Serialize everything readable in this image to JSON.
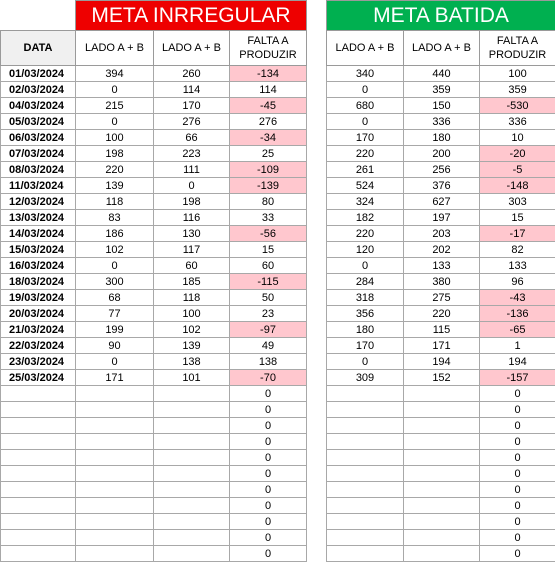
{
  "colors": {
    "irregular_header": "#ee0000",
    "batida_header": "#00b050",
    "negative_fill": "#ffc7ce",
    "negative_text": "#9c0006"
  },
  "left": {
    "title": "META INRREGULAR",
    "headers": {
      "date": "DATA",
      "col1": "LADO A + B",
      "col2": "LADO A + B",
      "col3": "FALTA A PRODUZIR"
    },
    "rows": [
      {
        "date": "01/03/2024",
        "a": "394",
        "b": "260",
        "falta": "-134",
        "neg": true
      },
      {
        "date": "02/03/2024",
        "a": "0",
        "b": "114",
        "falta": "114",
        "neg": false
      },
      {
        "date": "04/03/2024",
        "a": "215",
        "b": "170",
        "falta": "-45",
        "neg": true
      },
      {
        "date": "05/03/2024",
        "a": "0",
        "b": "276",
        "falta": "276",
        "neg": false
      },
      {
        "date": "06/03/2024",
        "a": "100",
        "b": "66",
        "falta": "-34",
        "neg": true
      },
      {
        "date": "07/03/2024",
        "a": "198",
        "b": "223",
        "falta": "25",
        "neg": false
      },
      {
        "date": "08/03/2024",
        "a": "220",
        "b": "111",
        "falta": "-109",
        "neg": true
      },
      {
        "date": "11/03/2024",
        "a": "139",
        "b": "0",
        "falta": "-139",
        "neg": true
      },
      {
        "date": "12/03/2024",
        "a": "118",
        "b": "198",
        "falta": "80",
        "neg": false
      },
      {
        "date": "13/03/2024",
        "a": "83",
        "b": "116",
        "falta": "33",
        "neg": false
      },
      {
        "date": "14/03/2024",
        "a": "186",
        "b": "130",
        "falta": "-56",
        "neg": true
      },
      {
        "date": "15/03/2024",
        "a": "102",
        "b": "117",
        "falta": "15",
        "neg": false
      },
      {
        "date": "16/03/2024",
        "a": "0",
        "b": "60",
        "falta": "60",
        "neg": false
      },
      {
        "date": "18/03/2024",
        "a": "300",
        "b": "185",
        "falta": "-115",
        "neg": true
      },
      {
        "date": "19/03/2024",
        "a": "68",
        "b": "118",
        "falta": "50",
        "neg": false
      },
      {
        "date": "20/03/2024",
        "a": "77",
        "b": "100",
        "falta": "23",
        "neg": false
      },
      {
        "date": "21/03/2024",
        "a": "199",
        "b": "102",
        "falta": "-97",
        "neg": true
      },
      {
        "date": "22/03/2024",
        "a": "90",
        "b": "139",
        "falta": "49",
        "neg": false
      },
      {
        "date": "23/03/2024",
        "a": "0",
        "b": "138",
        "falta": "138",
        "neg": false
      },
      {
        "date": "25/03/2024",
        "a": "171",
        "b": "101",
        "falta": "-70",
        "neg": true
      },
      {
        "date": "",
        "a": "",
        "b": "",
        "falta": "0",
        "neg": false
      },
      {
        "date": "",
        "a": "",
        "b": "",
        "falta": "0",
        "neg": false
      },
      {
        "date": "",
        "a": "",
        "b": "",
        "falta": "0",
        "neg": false
      },
      {
        "date": "",
        "a": "",
        "b": "",
        "falta": "0",
        "neg": false
      },
      {
        "date": "",
        "a": "",
        "b": "",
        "falta": "0",
        "neg": false
      },
      {
        "date": "",
        "a": "",
        "b": "",
        "falta": "0",
        "neg": false
      },
      {
        "date": "",
        "a": "",
        "b": "",
        "falta": "0",
        "neg": false
      },
      {
        "date": "",
        "a": "",
        "b": "",
        "falta": "0",
        "neg": false
      },
      {
        "date": "",
        "a": "",
        "b": "",
        "falta": "0",
        "neg": false
      },
      {
        "date": "",
        "a": "",
        "b": "",
        "falta": "0",
        "neg": false
      },
      {
        "date": "",
        "a": "",
        "b": "",
        "falta": "0",
        "neg": false
      }
    ]
  },
  "right": {
    "title": "META BATIDA",
    "headers": {
      "col1": "LADO A + B",
      "col2": "LADO A + B",
      "col3": "FALTA A PRODUZIR"
    },
    "rows": [
      {
        "a": "340",
        "b": "440",
        "falta": "100",
        "neg": false
      },
      {
        "a": "0",
        "b": "359",
        "falta": "359",
        "neg": false
      },
      {
        "a": "680",
        "b": "150",
        "falta": "-530",
        "neg": true
      },
      {
        "a": "0",
        "b": "336",
        "falta": "336",
        "neg": false
      },
      {
        "a": "170",
        "b": "180",
        "falta": "10",
        "neg": false
      },
      {
        "a": "220",
        "b": "200",
        "falta": "-20",
        "neg": true
      },
      {
        "a": "261",
        "b": "256",
        "falta": "-5",
        "neg": true
      },
      {
        "a": "524",
        "b": "376",
        "falta": "-148",
        "neg": true
      },
      {
        "a": "324",
        "b": "627",
        "falta": "303",
        "neg": false
      },
      {
        "a": "182",
        "b": "197",
        "falta": "15",
        "neg": false
      },
      {
        "a": "220",
        "b": "203",
        "falta": "-17",
        "neg": true
      },
      {
        "a": "120",
        "b": "202",
        "falta": "82",
        "neg": false
      },
      {
        "a": "0",
        "b": "133",
        "falta": "133",
        "neg": false
      },
      {
        "a": "284",
        "b": "380",
        "falta": "96",
        "neg": false
      },
      {
        "a": "318",
        "b": "275",
        "falta": "-43",
        "neg": true
      },
      {
        "a": "356",
        "b": "220",
        "falta": "-136",
        "neg": true
      },
      {
        "a": "180",
        "b": "115",
        "falta": "-65",
        "neg": true
      },
      {
        "a": "170",
        "b": "171",
        "falta": "1",
        "neg": false
      },
      {
        "a": "0",
        "b": "194",
        "falta": "194",
        "neg": false
      },
      {
        "a": "309",
        "b": "152",
        "falta": "-157",
        "neg": true
      },
      {
        "a": "",
        "b": "",
        "falta": "0",
        "neg": false
      },
      {
        "a": "",
        "b": "",
        "falta": "0",
        "neg": false
      },
      {
        "a": "",
        "b": "",
        "falta": "0",
        "neg": false
      },
      {
        "a": "",
        "b": "",
        "falta": "0",
        "neg": false
      },
      {
        "a": "",
        "b": "",
        "falta": "0",
        "neg": false
      },
      {
        "a": "",
        "b": "",
        "falta": "0",
        "neg": false
      },
      {
        "a": "",
        "b": "",
        "falta": "0",
        "neg": false
      },
      {
        "a": "",
        "b": "",
        "falta": "0",
        "neg": false
      },
      {
        "a": "",
        "b": "",
        "falta": "0",
        "neg": false
      },
      {
        "a": "",
        "b": "",
        "falta": "0",
        "neg": false
      },
      {
        "a": "",
        "b": "",
        "falta": "0",
        "neg": false
      }
    ]
  }
}
